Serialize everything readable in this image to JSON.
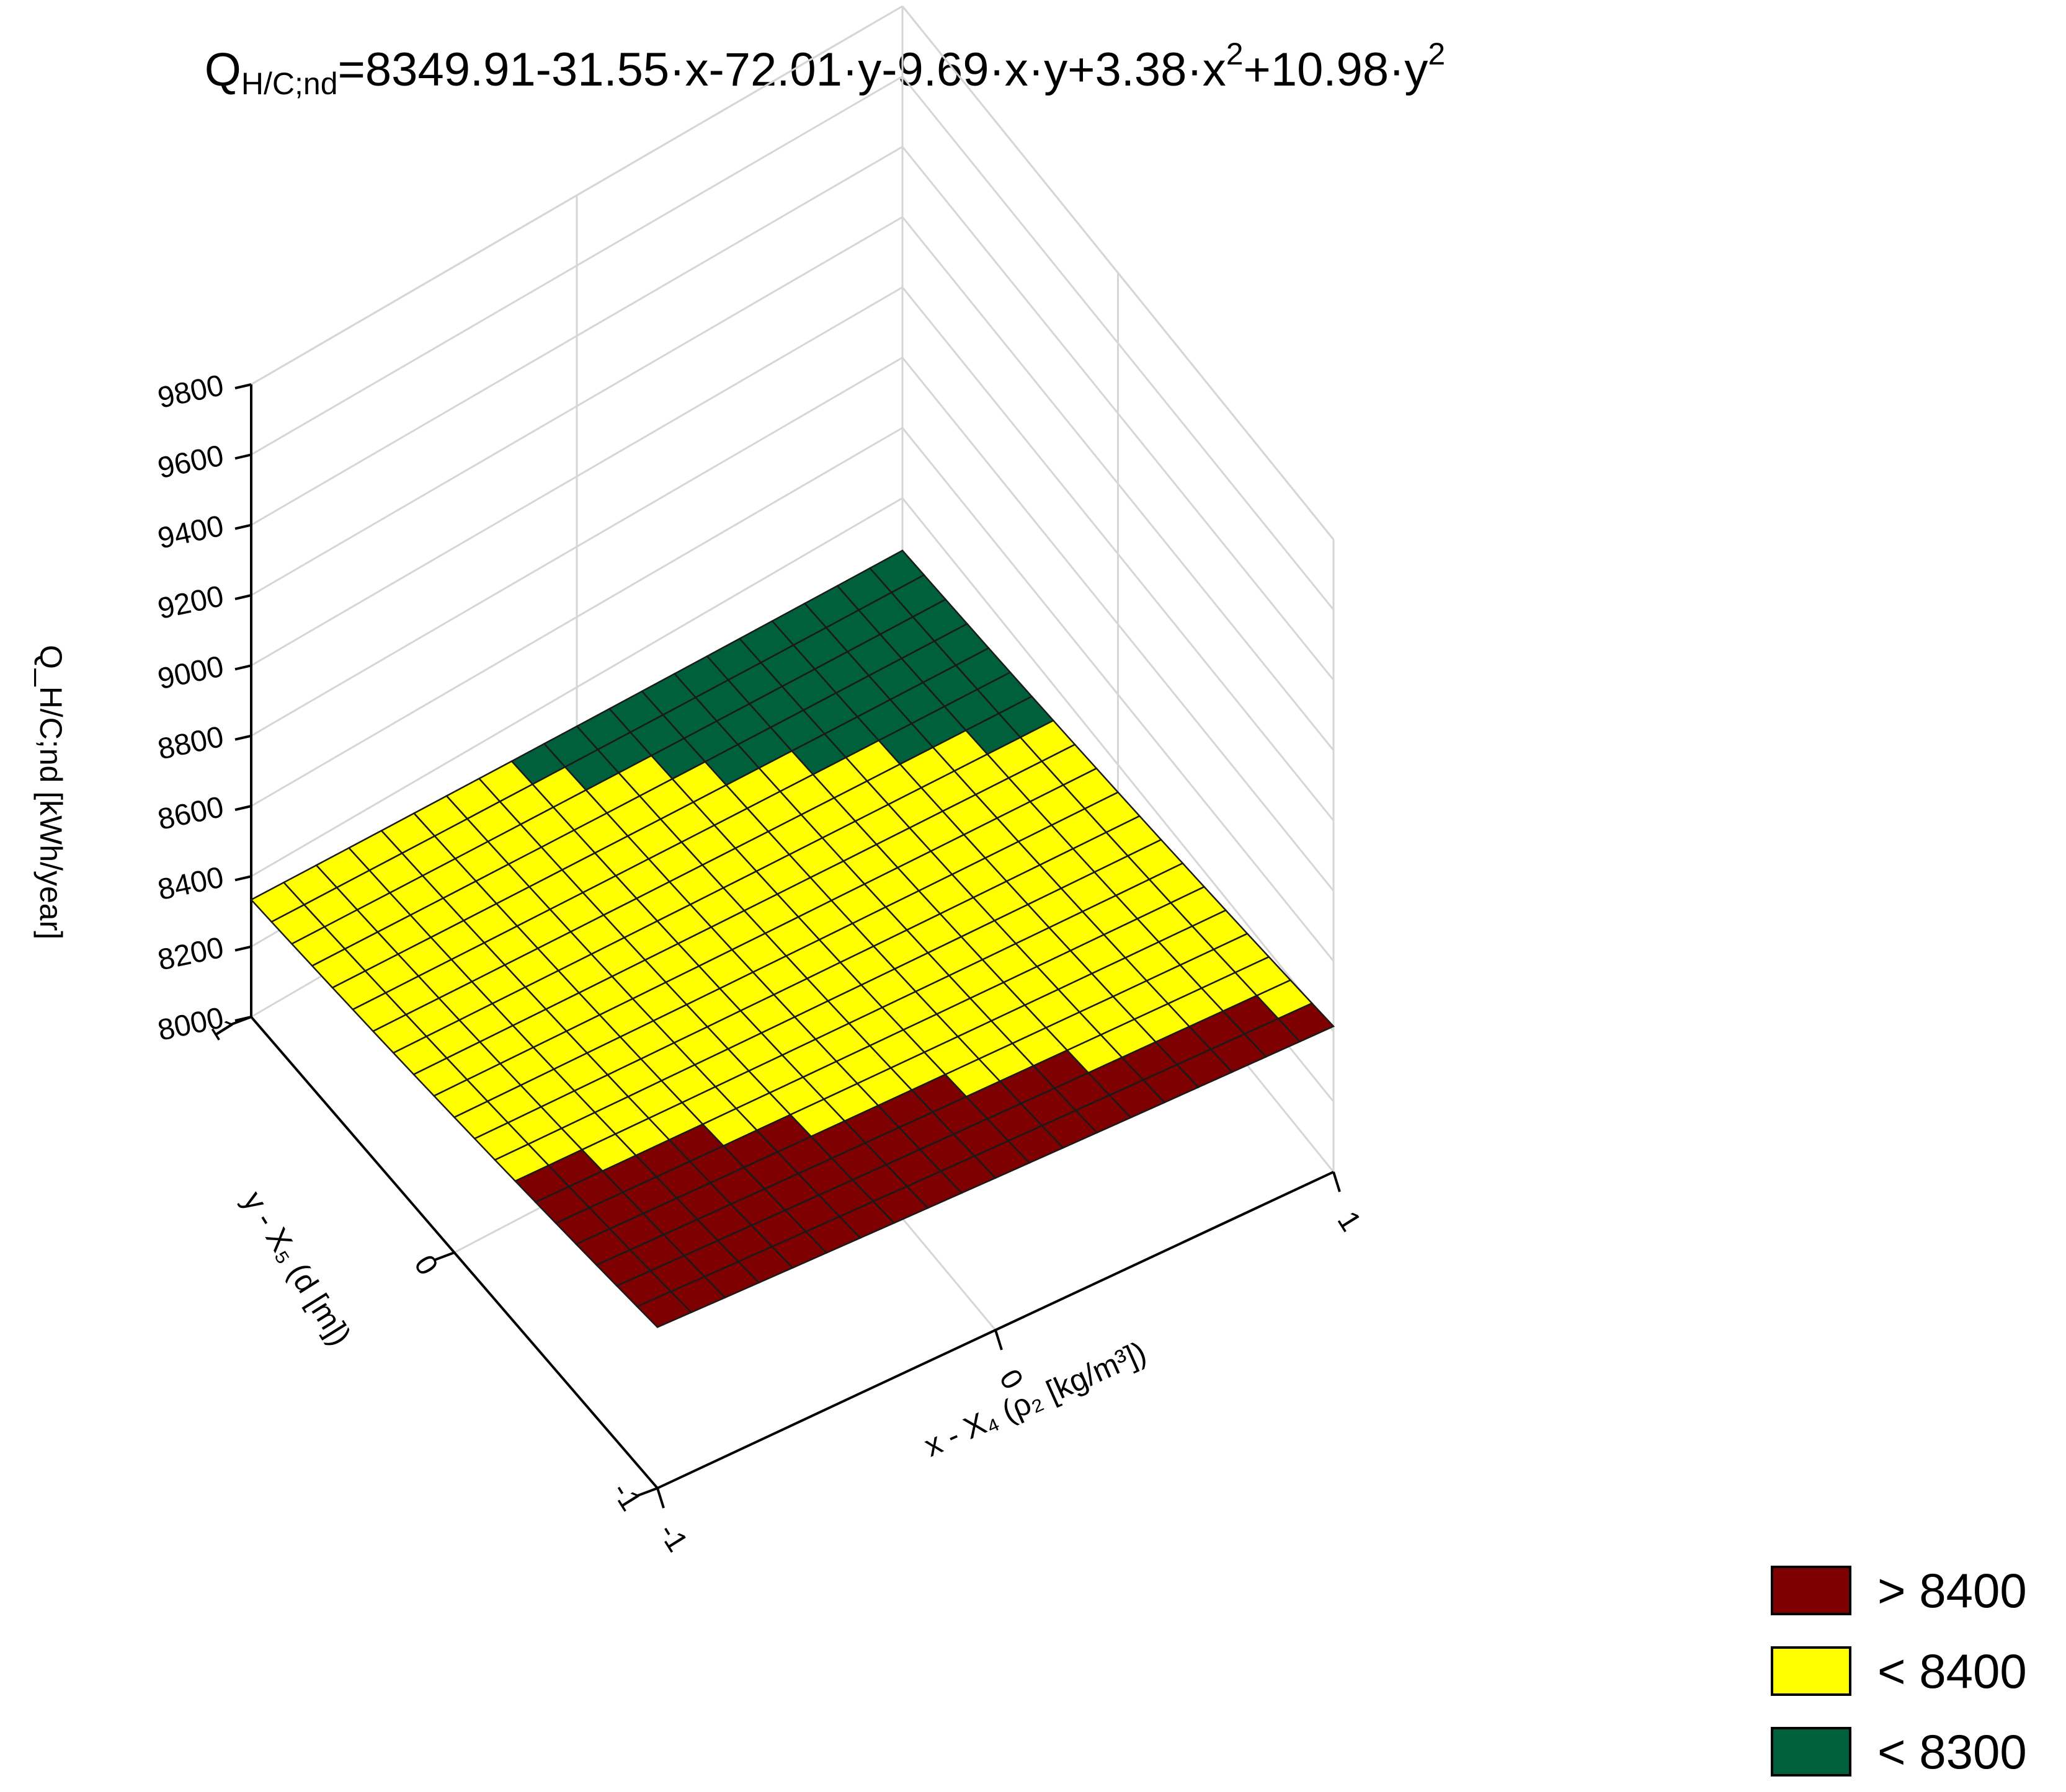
{
  "chart_data": {
    "type": "surface",
    "title_parts": {
      "q": "Q",
      "sub": "H/C;nd",
      "p1": "=8349.91-31.55·x-72.01·y-9.69·x·y+3.38·x",
      "sup1": "2",
      "p2": "+10.98·y",
      "sup2": "2"
    },
    "equation": {
      "c": 8349.91,
      "x": -31.55,
      "y": -72.01,
      "xy": -9.69,
      "xx": 3.38,
      "yy": 10.98
    },
    "xlabel": "x - X₄ (ρ₂ [kg/m³])",
    "ylabel": "y - X₅ (d [m])",
    "zlabel": "Q_H/C;nd [kWh/year]",
    "x_ticks": [
      "-1",
      "0",
      "1"
    ],
    "y_ticks": [
      "-1",
      "0",
      "1"
    ],
    "z_ticks": [
      "8000",
      "8200",
      "8400",
      "8600",
      "8800",
      "9000",
      "9200",
      "9400",
      "9600",
      "9800"
    ],
    "xlim": [
      -1,
      1
    ],
    "ylim": [
      -1,
      1
    ],
    "zlim": [
      8000,
      9800
    ],
    "grid": true,
    "legend_position": "bottom-right",
    "legend": [
      {
        "label": "> 8400",
        "color": "#7f0000"
      },
      {
        "label": "< 8400",
        "color": "#ffff00"
      },
      {
        "label": "< 8300",
        "color": "#00603c"
      }
    ]
  }
}
